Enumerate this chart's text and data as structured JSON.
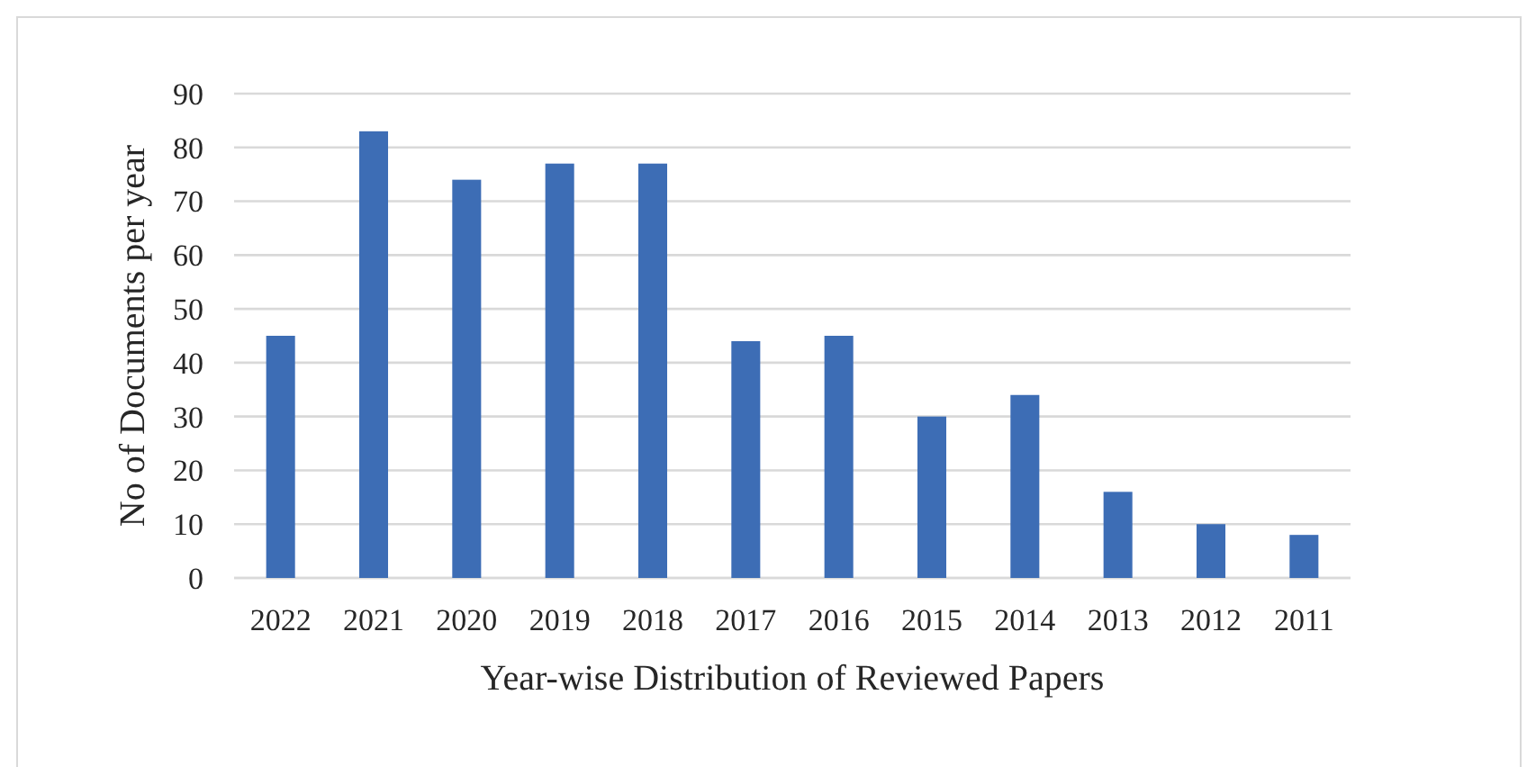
{
  "chart_data": {
    "type": "bar",
    "xlabel": "Year-wise Distribution of Reviewed Papers",
    "ylabel": "No of Documents per year",
    "categories": [
      "2022",
      "2021",
      "2020",
      "2019",
      "2018",
      "2017",
      "2016",
      "2015",
      "2014",
      "2013",
      "2012",
      "2011"
    ],
    "values": [
      45,
      83,
      74,
      77,
      77,
      44,
      45,
      30,
      34,
      16,
      10,
      8
    ],
    "color": "#3d6db5",
    "ylim": [
      0,
      90
    ],
    "yticks": [
      0,
      10,
      20,
      30,
      40,
      50,
      60,
      70,
      80,
      90
    ],
    "grid": "y"
  }
}
